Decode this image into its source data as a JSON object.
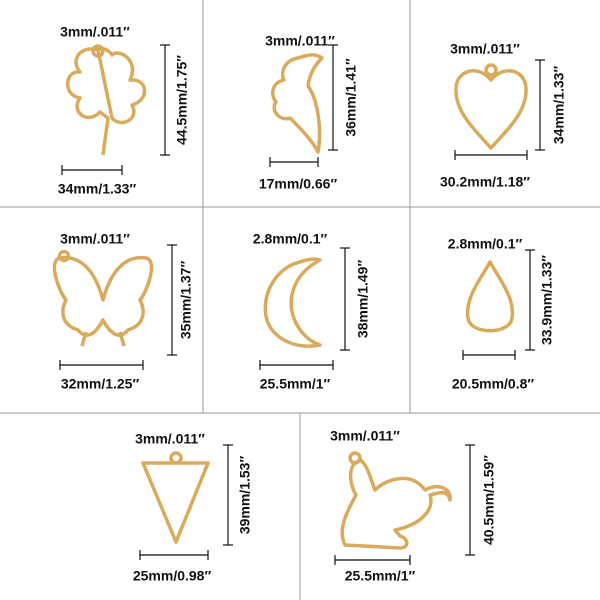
{
  "items": [
    {
      "thickness": "3mm/.011″",
      "width": "34mm/1.33″",
      "height": "44.5mm/1.75″"
    },
    {
      "thickness": "3mm/.011″",
      "width": "17mm/0.66″",
      "height": "36mm/1.41″"
    },
    {
      "thickness": "3mm/.011″",
      "width": "30.2mm/1.18″",
      "height": "34mm/1.33″"
    },
    {
      "thickness": "3mm/.011″",
      "width": "32mm/1.25″",
      "height": "35mm/1.37″"
    },
    {
      "thickness": "2.8mm/0.1″",
      "width": "25.5mm/1″",
      "height": "38mm/1.49″"
    },
    {
      "thickness": "2.8mm/0.1″",
      "width": "20.5mm/0.8″",
      "height": "33.9mm/1.33″"
    },
    {
      "thickness": "3mm/.011″",
      "width": "25mm/0.98″",
      "height": "39mm/1.53″"
    },
    {
      "thickness": "3mm/.011″",
      "width": "25.5mm/1″",
      "height": "40.5mm/1.59″"
    }
  ]
}
